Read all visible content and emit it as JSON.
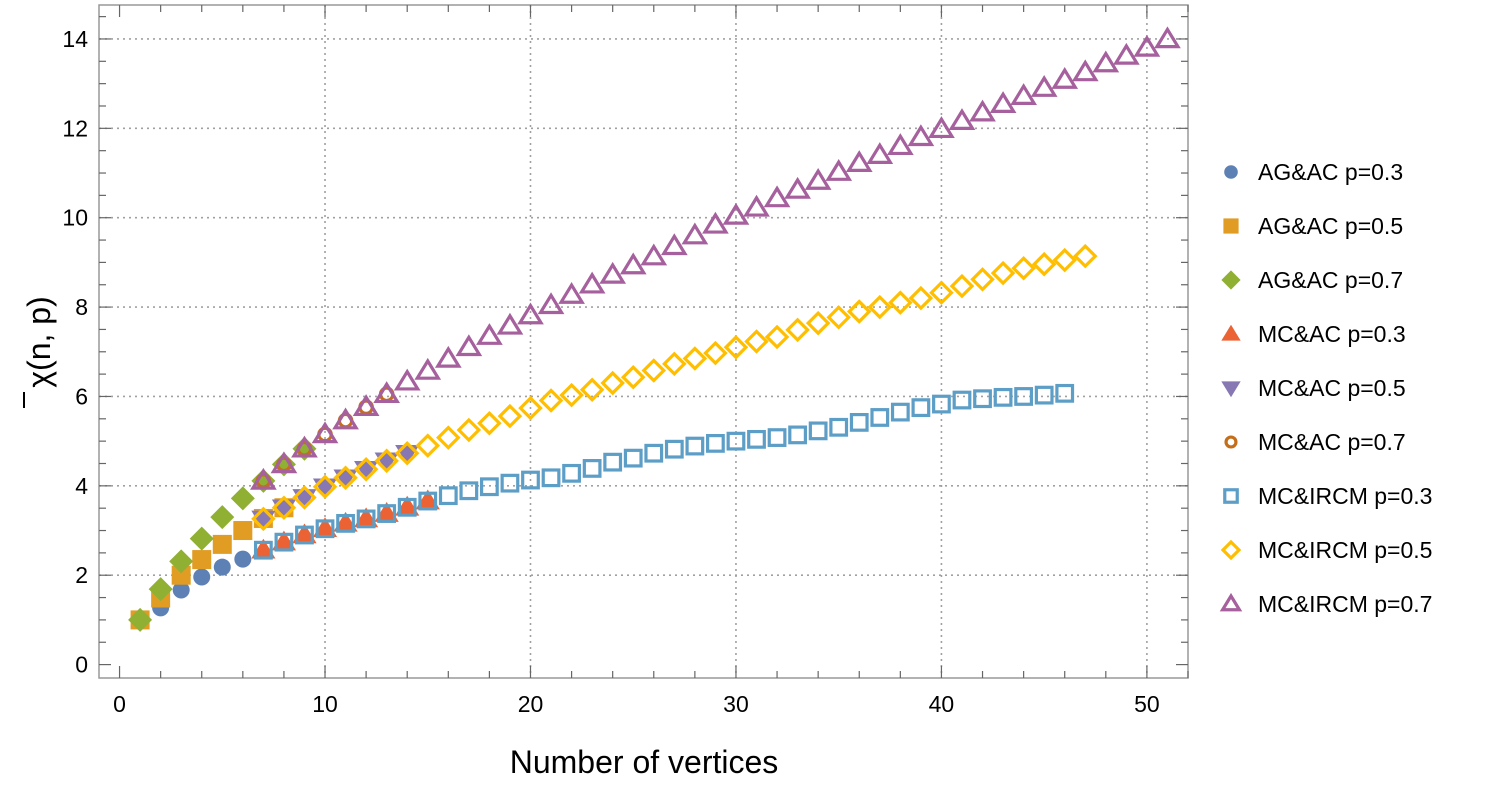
{
  "chart_data": {
    "type": "scatter",
    "title": "",
    "xlabel": "Number of vertices",
    "ylabel": "χ̄(n, p)",
    "xlim": [
      -1,
      52
    ],
    "ylim": [
      -0.3,
      14.76
    ],
    "xticks": [
      0,
      10,
      20,
      30,
      40,
      50
    ],
    "yticks": [
      0,
      2,
      4,
      6,
      8,
      10,
      12,
      14
    ],
    "x_minor_step": 2,
    "y_minor_step": 0.5,
    "grid": true,
    "grid_style": "dotted",
    "legend_position": "right",
    "series": [
      {
        "name": "AG&AC p=0.3",
        "marker": "circle",
        "filled": true,
        "color": "#5E81B5",
        "x": [
          1,
          2,
          3,
          4,
          5,
          6
        ],
        "y": [
          1.0,
          1.27,
          1.67,
          1.96,
          2.18,
          2.36
        ]
      },
      {
        "name": "AG&AC p=0.5",
        "marker": "square",
        "filled": true,
        "color": "#E19C24",
        "x": [
          1,
          2,
          3,
          4,
          5,
          6,
          7,
          8
        ],
        "y": [
          1.0,
          1.49,
          2.0,
          2.35,
          2.69,
          3.0,
          3.27,
          3.51
        ]
      },
      {
        "name": "AG&AC p=0.7",
        "marker": "diamond",
        "filled": true,
        "color": "#8FB032",
        "x": [
          1,
          2,
          3,
          4,
          5,
          6,
          7,
          8,
          9
        ],
        "y": [
          1.0,
          1.69,
          2.31,
          2.82,
          3.3,
          3.72,
          4.11,
          4.48,
          4.83
        ]
      },
      {
        "name": "MC&AC p=0.3",
        "marker": "triangle-up",
        "filled": true,
        "color": "#EB6235",
        "x": [
          7,
          8,
          9,
          10,
          11,
          12,
          13,
          14,
          15
        ],
        "y": [
          2.56,
          2.74,
          2.9,
          3.04,
          3.16,
          3.26,
          3.38,
          3.52,
          3.66
        ]
      },
      {
        "name": "MC&AC p=0.5",
        "marker": "triangle-down",
        "filled": true,
        "color": "#8778B3",
        "x": [
          7,
          8,
          9,
          10,
          11,
          12,
          13,
          14
        ],
        "y": [
          3.26,
          3.51,
          3.74,
          3.98,
          4.18,
          4.37,
          4.56,
          4.73
        ]
      },
      {
        "name": "MC&AC p=0.7",
        "marker": "circle",
        "filled": false,
        "color": "#C56E1A",
        "x": [
          7,
          8,
          9,
          10,
          11,
          12,
          13
        ],
        "y": [
          4.11,
          4.48,
          4.83,
          5.15,
          5.46,
          5.76,
          6.05
        ]
      },
      {
        "name": "MC&IRCM p=0.3",
        "marker": "square",
        "filled": false,
        "color": "#5D9EC7",
        "x": [
          7,
          8,
          9,
          10,
          11,
          12,
          13,
          14,
          15,
          16,
          17,
          18,
          19,
          20,
          21,
          22,
          23,
          24,
          25,
          26,
          27,
          28,
          29,
          30,
          31,
          32,
          33,
          34,
          35,
          36,
          37,
          38,
          39,
          40,
          41,
          42,
          43,
          44,
          45,
          46
        ],
        "y": [
          2.56,
          2.74,
          2.9,
          3.04,
          3.16,
          3.26,
          3.38,
          3.52,
          3.66,
          3.78,
          3.89,
          3.98,
          4.06,
          4.13,
          4.18,
          4.28,
          4.39,
          4.53,
          4.62,
          4.73,
          4.82,
          4.89,
          4.95,
          5.0,
          5.04,
          5.08,
          5.14,
          5.23,
          5.31,
          5.42,
          5.53,
          5.65,
          5.75,
          5.83,
          5.92,
          5.95,
          5.98,
          6.0,
          6.03,
          6.07
        ]
      },
      {
        "name": "MC&IRCM p=0.5",
        "marker": "diamond",
        "filled": false,
        "color": "#FFBF00",
        "x": [
          7,
          8,
          9,
          10,
          11,
          12,
          13,
          14,
          15,
          16,
          17,
          18,
          19,
          20,
          21,
          22,
          23,
          24,
          25,
          26,
          27,
          28,
          29,
          30,
          31,
          32,
          33,
          34,
          35,
          36,
          37,
          38,
          39,
          40,
          41,
          42,
          43,
          44,
          45,
          46,
          47
        ],
        "y": [
          3.26,
          3.51,
          3.74,
          3.98,
          4.18,
          4.37,
          4.56,
          4.73,
          4.9,
          5.08,
          5.25,
          5.4,
          5.56,
          5.74,
          5.91,
          6.03,
          6.15,
          6.3,
          6.43,
          6.58,
          6.73,
          6.85,
          6.97,
          7.1,
          7.23,
          7.33,
          7.49,
          7.64,
          7.77,
          7.9,
          8.0,
          8.1,
          8.2,
          8.32,
          8.47,
          8.62,
          8.76,
          8.87,
          8.96,
          9.05,
          9.14
        ]
      },
      {
        "name": "MC&IRCM p=0.7",
        "marker": "triangle-up",
        "filled": false,
        "color": "#A5609D",
        "x": [
          7,
          8,
          9,
          10,
          11,
          12,
          13,
          14,
          15,
          16,
          17,
          18,
          19,
          20,
          21,
          22,
          23,
          24,
          25,
          26,
          27,
          28,
          29,
          30,
          31,
          32,
          33,
          34,
          35,
          36,
          37,
          38,
          39,
          40,
          41,
          42,
          43,
          44,
          45,
          46,
          47,
          48,
          49,
          50,
          51
        ],
        "y": [
          4.11,
          4.48,
          4.83,
          5.15,
          5.46,
          5.76,
          6.05,
          6.33,
          6.57,
          6.84,
          7.1,
          7.35,
          7.58,
          7.81,
          8.04,
          8.27,
          8.5,
          8.72,
          8.93,
          9.13,
          9.36,
          9.6,
          9.84,
          10.04,
          10.22,
          10.43,
          10.62,
          10.82,
          11.02,
          11.22,
          11.4,
          11.6,
          11.8,
          11.98,
          12.16,
          12.35,
          12.54,
          12.72,
          12.9,
          13.08,
          13.25,
          13.45,
          13.62,
          13.8,
          13.99
        ]
      }
    ]
  },
  "axes": {
    "x_title": "Number of vertices",
    "y_title_symbol": "χ",
    "y_title_args": "(n, p)",
    "x_tick_labels": [
      "0",
      "10",
      "20",
      "30",
      "40",
      "50"
    ],
    "y_tick_labels": [
      "0",
      "2",
      "4",
      "6",
      "8",
      "10",
      "12",
      "14"
    ]
  },
  "legend": {
    "items": [
      {
        "label": "AG&AC p=0.3"
      },
      {
        "label": "AG&AC p=0.5"
      },
      {
        "label": "AG&AC p=0.7"
      },
      {
        "label": "MC&AC p=0.3"
      },
      {
        "label": "MC&AC p=0.5"
      },
      {
        "label": "MC&AC p=0.7"
      },
      {
        "label": "MC&IRCM p=0.3"
      },
      {
        "label": "MC&IRCM p=0.5"
      },
      {
        "label": "MC&IRCM p=0.7"
      }
    ]
  },
  "style": {
    "frame_color": "#999999",
    "grid_color": "#a0a0a0",
    "tick_color": "#666666"
  }
}
